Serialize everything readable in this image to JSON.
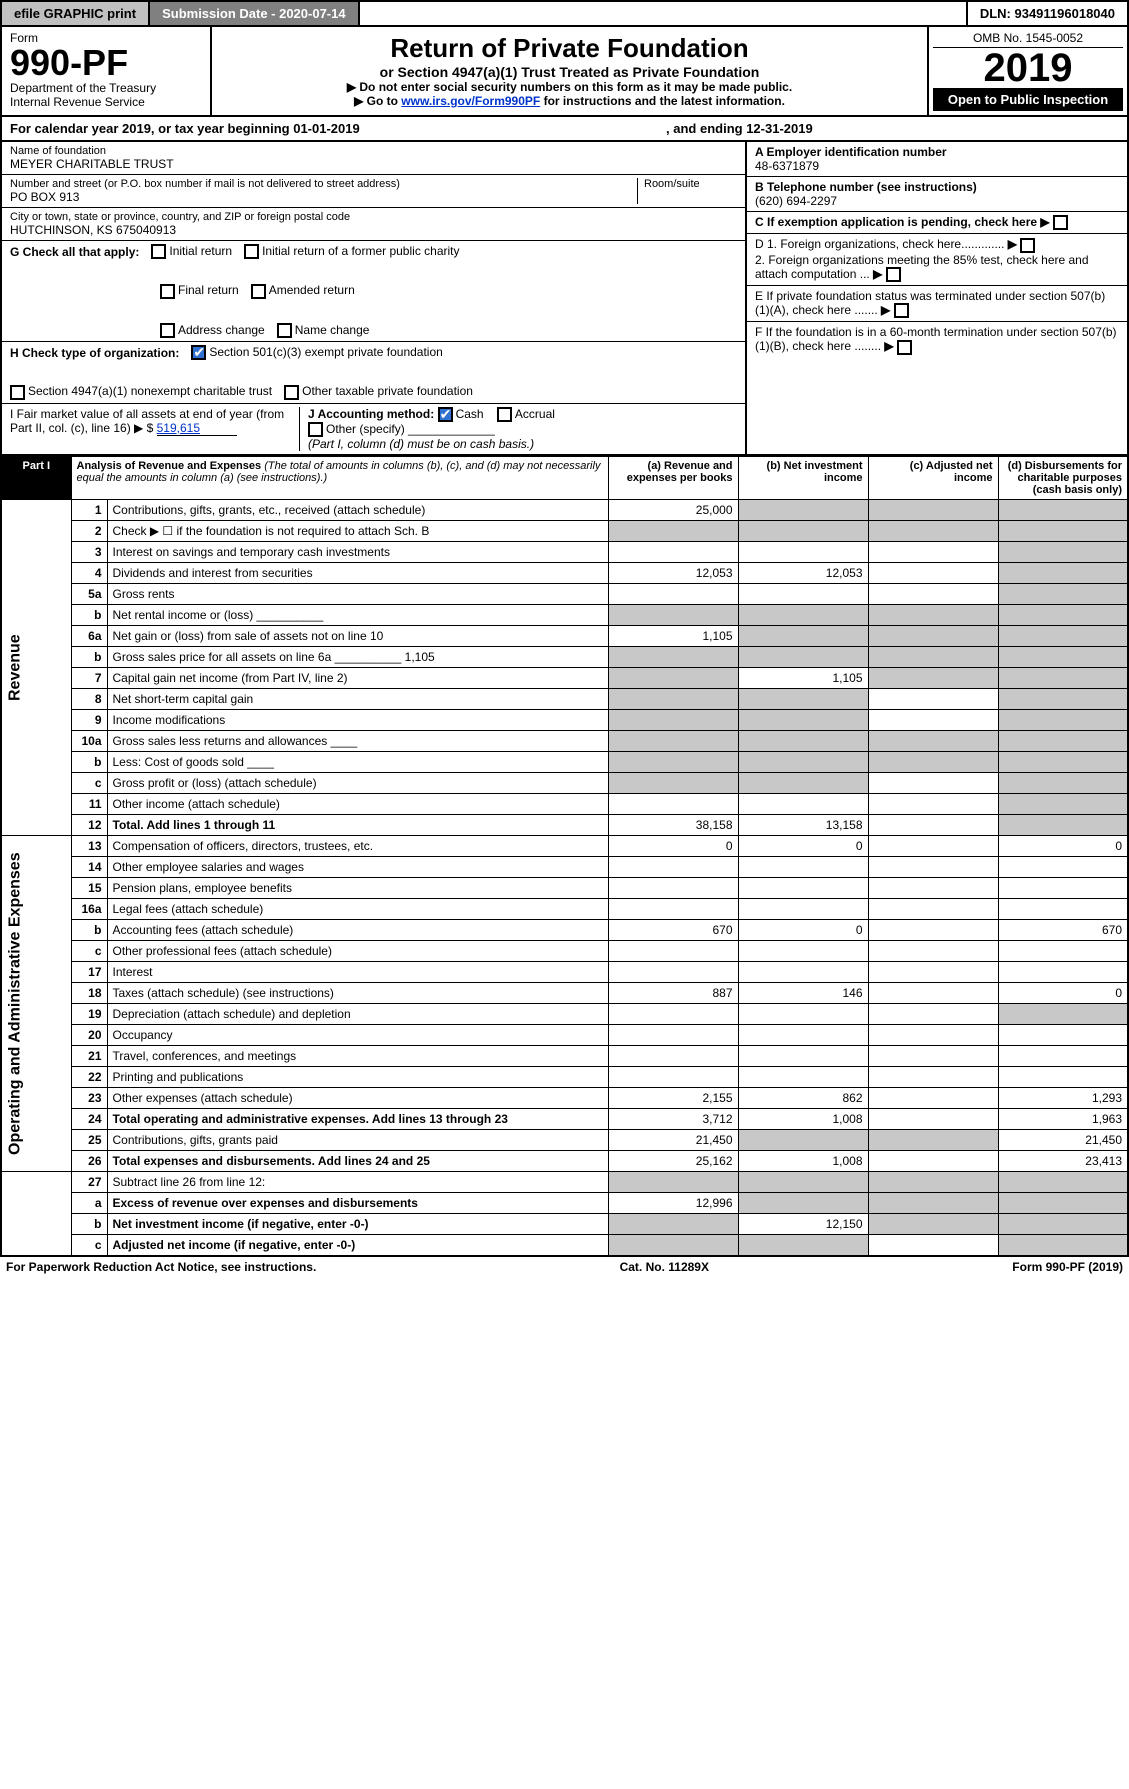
{
  "topbar": {
    "efile": "efile GRAPHIC print",
    "sub_date_label": "Submission Date - 2020-07-14",
    "dln": "DLN: 93491196018040"
  },
  "header": {
    "form_word": "Form",
    "form_no": "990-PF",
    "dept": "Department of the Treasury",
    "irs": "Internal Revenue Service",
    "title": "Return of Private Foundation",
    "subtitle": "or Section 4947(a)(1) Trust Treated as Private Foundation",
    "note1": "▶ Do not enter social security numbers on this form as it may be made public.",
    "note2_pre": "▶ Go to ",
    "note2_link": "www.irs.gov/Form990PF",
    "note2_post": " for instructions and the latest information.",
    "omb": "OMB No. 1545-0052",
    "year": "2019",
    "open": "Open to Public Inspection"
  },
  "cal": {
    "text": "For calendar year 2019, or tax year beginning 01-01-2019",
    "ending": ", and ending 12-31-2019"
  },
  "entity": {
    "name_lbl": "Name of foundation",
    "name": "MEYER CHARITABLE TRUST",
    "addr_lbl": "Number and street (or P.O. box number if mail is not delivered to street address)",
    "room_lbl": "Room/suite",
    "addr": "PO BOX 913",
    "city_lbl": "City or town, state or province, country, and ZIP or foreign postal code",
    "city": "HUTCHINSON, KS  675040913",
    "ein_lbl": "A Employer identification number",
    "ein": "48-6371879",
    "tel_lbl": "B Telephone number (see instructions)",
    "tel": "(620) 694-2297",
    "c_lbl": "C If exemption application is pending, check here",
    "d1": "D 1. Foreign organizations, check here.............",
    "d2": "2. Foreign organizations meeting the 85% test, check here and attach computation ...",
    "e_lbl": "E  If private foundation status was terminated under section 507(b)(1)(A), check here .......",
    "f_lbl": "F  If the foundation is in a 60-month termination under section 507(b)(1)(B), check here ........"
  },
  "checks": {
    "g_lbl": "G Check all that apply:",
    "initial": "Initial return",
    "initial_former": "Initial return of a former public charity",
    "final": "Final return",
    "amended": "Amended return",
    "addr_chg": "Address change",
    "name_chg": "Name change",
    "h_lbl": "H Check type of organization:",
    "h_501c3": "Section 501(c)(3) exempt private foundation",
    "h_4947": "Section 4947(a)(1) nonexempt charitable trust",
    "h_other": "Other taxable private foundation",
    "i_lbl": "I Fair market value of all assets at end of year (from Part II, col. (c), line 16) ▶ $",
    "i_val": "519,615",
    "j_lbl": "J Accounting method:",
    "j_cash": "Cash",
    "j_accrual": "Accrual",
    "j_other": "Other (specify)",
    "j_note": "(Part I, column (d) must be on cash basis.)"
  },
  "part1": {
    "tab": "Part I",
    "title": "Analysis of Revenue and Expenses",
    "title_note": "(The total of amounts in columns (b), (c), and (d) may not necessarily equal the amounts in column (a) (see instructions).)",
    "col_a": "(a)   Revenue and expenses per books",
    "col_b": "(b)  Net investment income",
    "col_c": "(c)  Adjusted net income",
    "col_d": "(d)  Disbursements for charitable purposes (cash basis only)"
  },
  "sections": {
    "revenue": "Revenue",
    "opex": "Operating and Administrative Expenses"
  },
  "rows": [
    {
      "n": "1",
      "d": "Contributions, gifts, grants, etc., received (attach schedule)",
      "a": "25,000",
      "b_shade": true,
      "c_shade": true,
      "d_shade": true
    },
    {
      "n": "2",
      "d": "Check ▶ ☐ if the foundation is not required to attach Sch. B",
      "a_shade": true,
      "b_shade": true,
      "c_shade": true,
      "d_shade": true
    },
    {
      "n": "3",
      "d": "Interest on savings and temporary cash investments",
      "d_shade": true
    },
    {
      "n": "4",
      "d": "Dividends and interest from securities",
      "a": "12,053",
      "b": "12,053",
      "d_shade": true
    },
    {
      "n": "5a",
      "d": "Gross rents",
      "d_shade": true
    },
    {
      "n": "b",
      "d": "Net rental income or (loss)  __________",
      "a_shade": true,
      "b_shade": true,
      "c_shade": true,
      "d_shade": true
    },
    {
      "n": "6a",
      "d": "Net gain or (loss) from sale of assets not on line 10",
      "a": "1,105",
      "b_shade": true,
      "c_shade": true,
      "d_shade": true
    },
    {
      "n": "b",
      "d": "Gross sales price for all assets on line 6a __________ 1,105",
      "a_shade": true,
      "b_shade": true,
      "c_shade": true,
      "d_shade": true
    },
    {
      "n": "7",
      "d": "Capital gain net income (from Part IV, line 2)",
      "a_shade": true,
      "b": "1,105",
      "c_shade": true,
      "d_shade": true
    },
    {
      "n": "8",
      "d": "Net short-term capital gain",
      "a_shade": true,
      "b_shade": true,
      "d_shade": true
    },
    {
      "n": "9",
      "d": "Income modifications",
      "a_shade": true,
      "b_shade": true,
      "d_shade": true
    },
    {
      "n": "10a",
      "d": "Gross sales less returns and allowances  ____",
      "a_shade": true,
      "b_shade": true,
      "c_shade": true,
      "d_shade": true
    },
    {
      "n": "b",
      "d": "Less: Cost of goods sold   ____",
      "a_shade": true,
      "b_shade": true,
      "c_shade": true,
      "d_shade": true
    },
    {
      "n": "c",
      "d": "Gross profit or (loss) (attach schedule)",
      "a_shade": true,
      "b_shade": true,
      "d_shade": true
    },
    {
      "n": "11",
      "d": "Other income (attach schedule)",
      "d_shade": true
    },
    {
      "n": "12",
      "d": "Total. Add lines 1 through 11",
      "a": "38,158",
      "b": "13,158",
      "d_shade": true,
      "bold": true
    }
  ],
  "oprows": [
    {
      "n": "13",
      "d": "0",
      "a": "0",
      "b": "0"
    },
    {
      "n": "14",
      "d": "Other employee salaries and wages"
    },
    {
      "n": "15",
      "d": "Pension plans, employee benefits"
    },
    {
      "n": "16a",
      "d": "Legal fees (attach schedule)"
    },
    {
      "n": "b",
      "d": "670",
      "a": "670",
      "b": "0"
    },
    {
      "n": "c",
      "d": "Other professional fees (attach schedule)"
    },
    {
      "n": "17",
      "d": "Interest"
    },
    {
      "n": "18",
      "d": "0",
      "a": "887",
      "b": "146"
    },
    {
      "n": "19",
      "d": "Depreciation (attach schedule) and depletion",
      "d_shade": true
    },
    {
      "n": "20",
      "d": "Occupancy"
    },
    {
      "n": "21",
      "d": "Travel, conferences, and meetings"
    },
    {
      "n": "22",
      "d": "Printing and publications"
    },
    {
      "n": "23",
      "d": "1,293",
      "a": "2,155",
      "b": "862"
    },
    {
      "n": "24",
      "d": "1,963",
      "a": "3,712",
      "b": "1,008",
      "bold": true
    },
    {
      "n": "25",
      "d": "21,450",
      "a": "21,450",
      "b_shade": true,
      "c_shade": true
    },
    {
      "n": "26",
      "d": "23,413",
      "a": "25,162",
      "b": "1,008",
      "bold": true
    }
  ],
  "endrows": [
    {
      "n": "27",
      "d": "Subtract line 26 from line 12:",
      "a_shade": true,
      "b_shade": true,
      "c_shade": true,
      "d_shade": true
    },
    {
      "n": "a",
      "d": "Excess of revenue over expenses and disbursements",
      "a": "12,996",
      "b_shade": true,
      "c_shade": true,
      "d_shade": true,
      "bold": true
    },
    {
      "n": "b",
      "d": "Net investment income (if negative, enter -0-)",
      "a_shade": true,
      "b": "12,150",
      "c_shade": true,
      "d_shade": true,
      "bold": true
    },
    {
      "n": "c",
      "d": "Adjusted net income (if negative, enter -0-)",
      "a_shade": true,
      "b_shade": true,
      "d_shade": true,
      "bold": true
    }
  ],
  "footer": {
    "left": "For Paperwork Reduction Act Notice, see instructions.",
    "mid": "Cat. No. 11289X",
    "right": "Form 990-PF (2019)"
  },
  "colors": {
    "shade": "#c8c8c8",
    "link": "#0033cc",
    "btn_bg": "#c0c0c0",
    "subdate_bg": "#808080",
    "chk_blue": "#3070d0"
  }
}
